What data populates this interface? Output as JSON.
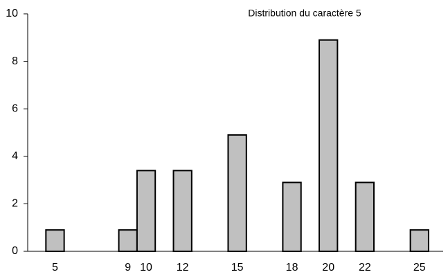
{
  "chart_data": {
    "type": "bar",
    "title": "Distribution du caractère 5",
    "x": [
      5,
      9,
      10,
      12,
      15,
      18,
      20,
      22,
      25
    ],
    "values": [
      0.9,
      0.9,
      3.4,
      3.4,
      4.9,
      2.9,
      8.9,
      2.9,
      0.9
    ],
    "color": "#c0c0c0",
    "xlim": [
      3.5,
      26.3
    ],
    "ylim": [
      0,
      10
    ],
    "yticks": [
      0,
      2,
      4,
      6,
      8,
      10
    ],
    "grid": false
  }
}
